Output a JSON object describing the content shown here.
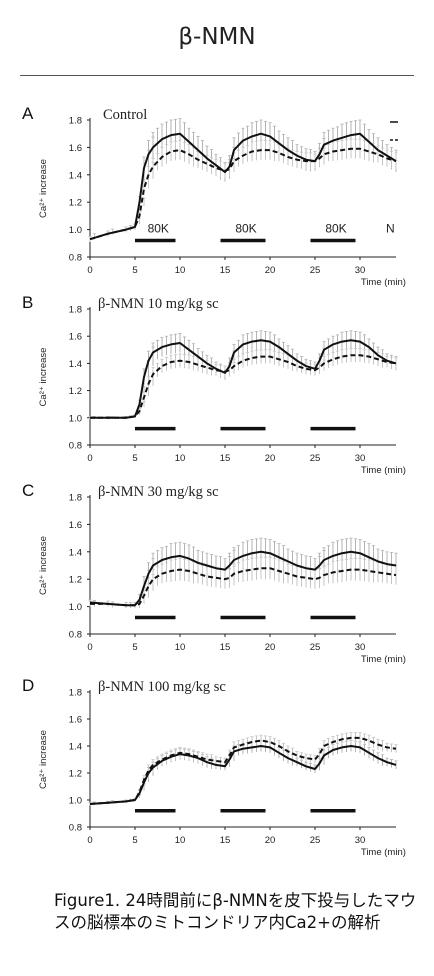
{
  "title": "β-NMN",
  "caption": "Figure1. 24時間前にβ-NMNを皮下投与したマウスの脳標本のミトコンドリア内Ca2+の解析",
  "chart_data": [
    {
      "type": "line",
      "panel": "A",
      "condition": "Control",
      "xlabel": "Time (min)",
      "ylabel": "Ca²⁺ increase",
      "xlim": [
        0,
        34
      ],
      "ylim": [
        0.8,
        1.8
      ],
      "x_ticks": [
        "0",
        "5",
        "10",
        "15",
        "20",
        "25",
        "30",
        "35"
      ],
      "y_ticks": [
        "0.8",
        "1.0",
        "1.2",
        "1.4",
        "1.6",
        "1.8"
      ],
      "stimuli": [
        {
          "start": 5,
          "end": 9.5,
          "label": "80K"
        },
        {
          "start": 14.5,
          "end": 19.5,
          "label": "80K"
        },
        {
          "start": 24.5,
          "end": 29.5,
          "label": "80K"
        }
      ],
      "extra_label": "N",
      "series": [
        {
          "style": "solid",
          "x": [
            0,
            2,
            4,
            5,
            5.5,
            6,
            6.5,
            7,
            8,
            9,
            10,
            11,
            12,
            13,
            14,
            15,
            15.5,
            16,
            17,
            18,
            19,
            20,
            21,
            22,
            23,
            24,
            25,
            25.5,
            26,
            27,
            28,
            29,
            30,
            31,
            32,
            33,
            34
          ],
          "y": [
            0.93,
            0.97,
            1.0,
            1.02,
            1.2,
            1.45,
            1.55,
            1.6,
            1.66,
            1.69,
            1.7,
            1.64,
            1.58,
            1.52,
            1.47,
            1.42,
            1.46,
            1.58,
            1.65,
            1.68,
            1.7,
            1.68,
            1.63,
            1.58,
            1.54,
            1.51,
            1.5,
            1.55,
            1.62,
            1.65,
            1.67,
            1.69,
            1.7,
            1.64,
            1.58,
            1.54,
            1.5
          ],
          "err": [
            0.02,
            0.02,
            0.02,
            0.02,
            0.04,
            0.08,
            0.1,
            0.11,
            0.11,
            0.11,
            0.11,
            0.1,
            0.1,
            0.09,
            0.08,
            0.07,
            0.08,
            0.09,
            0.09,
            0.1,
            0.1,
            0.1,
            0.09,
            0.09,
            0.08,
            0.08,
            0.07,
            0.08,
            0.09,
            0.09,
            0.1,
            0.1,
            0.1,
            0.09,
            0.09,
            0.08,
            0.08
          ]
        },
        {
          "style": "dashed",
          "x": [
            0,
            2,
            4,
            5,
            5.5,
            6,
            6.5,
            7,
            8,
            9,
            10,
            11,
            12,
            13,
            14,
            15,
            15.5,
            16,
            17,
            18,
            19,
            20,
            21,
            22,
            23,
            24,
            25,
            25.5,
            26,
            27,
            28,
            29,
            30,
            31,
            32,
            33,
            34
          ],
          "y": [
            0.93,
            0.97,
            1.0,
            1.02,
            1.1,
            1.3,
            1.4,
            1.46,
            1.53,
            1.57,
            1.58,
            1.55,
            1.51,
            1.48,
            1.45,
            1.43,
            1.44,
            1.5,
            1.54,
            1.57,
            1.58,
            1.58,
            1.56,
            1.53,
            1.51,
            1.5,
            1.5,
            1.52,
            1.55,
            1.57,
            1.58,
            1.59,
            1.59,
            1.57,
            1.55,
            1.52,
            1.5
          ],
          "err": [
            0.02,
            0.02,
            0.02,
            0.02,
            0.03,
            0.05,
            0.06,
            0.06,
            0.07,
            0.07,
            0.07,
            0.07,
            0.06,
            0.06,
            0.06,
            0.05,
            0.05,
            0.06,
            0.06,
            0.07,
            0.07,
            0.07,
            0.06,
            0.06,
            0.06,
            0.06,
            0.05,
            0.06,
            0.06,
            0.07,
            0.07,
            0.07,
            0.07,
            0.07,
            0.06,
            0.06,
            0.06
          ]
        }
      ]
    },
    {
      "type": "line",
      "panel": "B",
      "condition": "β-NMN 10 mg/kg sc",
      "xlabel": "Time (min)",
      "ylabel": "Ca²⁺ increase",
      "xlim": [
        0,
        34
      ],
      "ylim": [
        0.8,
        1.8
      ],
      "x_ticks": [
        "0",
        "5",
        "10",
        "15",
        "20",
        "25",
        "30",
        "35"
      ],
      "y_ticks": [
        "0.8",
        "1.0",
        "1.2",
        "1.4",
        "1.6",
        "1.8"
      ],
      "stimuli": [
        {
          "start": 5,
          "end": 9.5
        },
        {
          "start": 14.5,
          "end": 19.5
        },
        {
          "start": 24.5,
          "end": 29.5
        }
      ],
      "series": [
        {
          "style": "solid",
          "x": [
            0,
            2,
            4,
            5,
            5.5,
            6,
            6.5,
            7,
            8,
            9,
            10,
            11,
            12,
            13,
            14,
            15,
            15.5,
            16,
            17,
            18,
            19,
            20,
            21,
            22,
            23,
            24,
            25,
            25.5,
            26,
            27,
            28,
            29,
            30,
            31,
            32,
            33,
            34
          ],
          "y": [
            1.0,
            1.0,
            1.0,
            1.01,
            1.1,
            1.3,
            1.42,
            1.48,
            1.52,
            1.54,
            1.55,
            1.5,
            1.45,
            1.4,
            1.36,
            1.33,
            1.38,
            1.48,
            1.54,
            1.56,
            1.57,
            1.56,
            1.52,
            1.47,
            1.42,
            1.38,
            1.36,
            1.42,
            1.5,
            1.54,
            1.56,
            1.57,
            1.56,
            1.52,
            1.46,
            1.42,
            1.4
          ],
          "err": [
            0.01,
            0.01,
            0.01,
            0.01,
            0.03,
            0.06,
            0.07,
            0.07,
            0.07,
            0.07,
            0.07,
            0.07,
            0.06,
            0.06,
            0.05,
            0.05,
            0.06,
            0.06,
            0.07,
            0.07,
            0.07,
            0.07,
            0.06,
            0.06,
            0.05,
            0.05,
            0.05,
            0.05,
            0.06,
            0.06,
            0.07,
            0.07,
            0.07,
            0.06,
            0.06,
            0.05,
            0.05
          ]
        },
        {
          "style": "dashed",
          "x": [
            0,
            2,
            4,
            5,
            5.5,
            6,
            6.5,
            7,
            8,
            9,
            10,
            11,
            12,
            13,
            14,
            15,
            15.5,
            16,
            17,
            18,
            19,
            20,
            21,
            22,
            23,
            24,
            25,
            25.5,
            26,
            27,
            28,
            29,
            30,
            31,
            32,
            33,
            34
          ],
          "y": [
            1.0,
            1.0,
            1.0,
            1.01,
            1.05,
            1.15,
            1.25,
            1.32,
            1.38,
            1.41,
            1.42,
            1.41,
            1.39,
            1.37,
            1.35,
            1.34,
            1.35,
            1.38,
            1.42,
            1.44,
            1.45,
            1.45,
            1.43,
            1.41,
            1.38,
            1.36,
            1.35,
            1.37,
            1.4,
            1.43,
            1.45,
            1.46,
            1.46,
            1.45,
            1.43,
            1.41,
            1.4
          ],
          "err": [
            0.01,
            0.01,
            0.01,
            0.01,
            0.02,
            0.04,
            0.05,
            0.05,
            0.05,
            0.05,
            0.05,
            0.05,
            0.05,
            0.05,
            0.04,
            0.04,
            0.04,
            0.05,
            0.05,
            0.05,
            0.05,
            0.05,
            0.05,
            0.05,
            0.04,
            0.04,
            0.04,
            0.04,
            0.05,
            0.05,
            0.05,
            0.05,
            0.05,
            0.05,
            0.05,
            0.04,
            0.04
          ]
        }
      ]
    },
    {
      "type": "line",
      "panel": "C",
      "condition": "β-NMN 30 mg/kg sc",
      "xlabel": "Time (min)",
      "ylabel": "Ca²⁺ increase",
      "xlim": [
        0,
        34
      ],
      "ylim": [
        0.8,
        1.8
      ],
      "x_ticks": [
        "0",
        "5",
        "10",
        "15",
        "20",
        "25",
        "30"
      ],
      "y_ticks": [
        "0.8",
        "1.0",
        "1.2",
        "1.4",
        "1.6",
        "1.8"
      ],
      "stimuli": [
        {
          "start": 5,
          "end": 9.5
        },
        {
          "start": 14.5,
          "end": 19.5
        },
        {
          "start": 24.5,
          "end": 29.5
        }
      ],
      "series": [
        {
          "style": "solid",
          "x": [
            0,
            2,
            4,
            5,
            5.5,
            6,
            6.5,
            7,
            8,
            9,
            10,
            11,
            12,
            13,
            14,
            15,
            15.5,
            16,
            17,
            18,
            19,
            20,
            21,
            22,
            23,
            24,
            25,
            25.5,
            26,
            27,
            28,
            29,
            30,
            31,
            32,
            33,
            34
          ],
          "y": [
            1.03,
            1.02,
            1.01,
            1.01,
            1.05,
            1.15,
            1.24,
            1.3,
            1.34,
            1.36,
            1.37,
            1.35,
            1.32,
            1.3,
            1.28,
            1.27,
            1.3,
            1.34,
            1.37,
            1.39,
            1.4,
            1.39,
            1.36,
            1.33,
            1.3,
            1.28,
            1.27,
            1.3,
            1.34,
            1.37,
            1.39,
            1.4,
            1.39,
            1.36,
            1.33,
            1.31,
            1.3
          ],
          "err": [
            0.02,
            0.02,
            0.02,
            0.02,
            0.04,
            0.07,
            0.08,
            0.09,
            0.09,
            0.1,
            0.1,
            0.1,
            0.09,
            0.09,
            0.09,
            0.08,
            0.09,
            0.09,
            0.1,
            0.1,
            0.1,
            0.1,
            0.1,
            0.09,
            0.09,
            0.09,
            0.08,
            0.09,
            0.09,
            0.1,
            0.1,
            0.1,
            0.1,
            0.1,
            0.09,
            0.09,
            0.09
          ]
        },
        {
          "style": "dashed",
          "x": [
            0,
            2,
            4,
            5,
            5.5,
            6,
            6.5,
            7,
            8,
            9,
            10,
            11,
            12,
            13,
            14,
            15,
            15.5,
            16,
            17,
            18,
            19,
            20,
            21,
            22,
            23,
            24,
            25,
            25.5,
            26,
            27,
            28,
            29,
            30,
            31,
            32,
            33,
            34
          ],
          "y": [
            1.02,
            1.02,
            1.01,
            1.01,
            1.02,
            1.08,
            1.15,
            1.2,
            1.24,
            1.26,
            1.27,
            1.26,
            1.24,
            1.22,
            1.21,
            1.2,
            1.21,
            1.24,
            1.26,
            1.27,
            1.28,
            1.28,
            1.26,
            1.24,
            1.22,
            1.21,
            1.2,
            1.21,
            1.23,
            1.25,
            1.26,
            1.27,
            1.27,
            1.26,
            1.25,
            1.24,
            1.23
          ],
          "err": [
            0.02,
            0.02,
            0.02,
            0.02,
            0.03,
            0.05,
            0.06,
            0.07,
            0.07,
            0.08,
            0.08,
            0.08,
            0.07,
            0.07,
            0.07,
            0.07,
            0.07,
            0.07,
            0.08,
            0.08,
            0.08,
            0.08,
            0.08,
            0.07,
            0.07,
            0.07,
            0.07,
            0.07,
            0.07,
            0.08,
            0.08,
            0.08,
            0.08,
            0.08,
            0.07,
            0.07,
            0.07
          ]
        }
      ]
    },
    {
      "type": "line",
      "panel": "D",
      "condition": "β-NMN 100 mg/kg sc",
      "xlabel": "Time (min)",
      "ylabel": "Ca²⁺ increase",
      "xlim": [
        0,
        34
      ],
      "ylim": [
        0.8,
        1.8
      ],
      "x_ticks": [
        "0",
        "5",
        "10",
        "15",
        "20",
        "25",
        "30"
      ],
      "y_ticks": [
        "0.8",
        "1.0",
        "1.2",
        "1.4",
        "1.6",
        "1.8"
      ],
      "stimuli": [
        {
          "start": 5,
          "end": 9.5
        },
        {
          "start": 14.5,
          "end": 19.5
        },
        {
          "start": 24.5,
          "end": 29.5
        }
      ],
      "series": [
        {
          "style": "solid",
          "x": [
            0,
            2,
            4,
            5,
            5.5,
            6,
            6.5,
            7,
            8,
            9,
            10,
            11,
            12,
            13,
            14,
            15,
            15.5,
            16,
            17,
            18,
            19,
            20,
            21,
            22,
            23,
            24,
            25,
            25.5,
            26,
            27,
            28,
            29,
            30,
            31,
            32,
            33,
            34
          ],
          "y": [
            0.97,
            0.98,
            0.99,
            1.0,
            1.05,
            1.13,
            1.2,
            1.24,
            1.29,
            1.32,
            1.34,
            1.33,
            1.31,
            1.28,
            1.26,
            1.25,
            1.3,
            1.36,
            1.38,
            1.39,
            1.4,
            1.39,
            1.35,
            1.31,
            1.28,
            1.25,
            1.23,
            1.27,
            1.33,
            1.37,
            1.39,
            1.4,
            1.39,
            1.35,
            1.31,
            1.28,
            1.26
          ],
          "err": [
            0.01,
            0.01,
            0.01,
            0.01,
            0.02,
            0.03,
            0.04,
            0.04,
            0.04,
            0.04,
            0.04,
            0.04,
            0.04,
            0.04,
            0.03,
            0.03,
            0.04,
            0.04,
            0.04,
            0.04,
            0.04,
            0.04,
            0.04,
            0.04,
            0.03,
            0.03,
            0.03,
            0.04,
            0.04,
            0.04,
            0.04,
            0.04,
            0.04,
            0.04,
            0.04,
            0.03,
            0.03
          ]
        },
        {
          "style": "dashed",
          "x": [
            0,
            2,
            4,
            5,
            5.5,
            6,
            6.5,
            7,
            8,
            9,
            10,
            11,
            12,
            13,
            14,
            15,
            15.5,
            16,
            17,
            18,
            19,
            20,
            21,
            22,
            23,
            24,
            25,
            25.5,
            26,
            27,
            28,
            29,
            30,
            31,
            32,
            33,
            34
          ],
          "y": [
            0.97,
            0.98,
            0.99,
            1.0,
            1.06,
            1.15,
            1.22,
            1.26,
            1.3,
            1.33,
            1.35,
            1.34,
            1.32,
            1.3,
            1.29,
            1.28,
            1.33,
            1.39,
            1.41,
            1.43,
            1.44,
            1.43,
            1.4,
            1.36,
            1.33,
            1.31,
            1.3,
            1.34,
            1.4,
            1.43,
            1.45,
            1.46,
            1.46,
            1.44,
            1.41,
            1.39,
            1.38
          ],
          "err": [
            0.01,
            0.01,
            0.01,
            0.01,
            0.02,
            0.03,
            0.04,
            0.04,
            0.04,
            0.04,
            0.04,
            0.04,
            0.04,
            0.04,
            0.03,
            0.03,
            0.04,
            0.04,
            0.04,
            0.04,
            0.04,
            0.04,
            0.04,
            0.04,
            0.03,
            0.03,
            0.03,
            0.04,
            0.04,
            0.04,
            0.04,
            0.04,
            0.04,
            0.04,
            0.04,
            0.03,
            0.03
          ]
        }
      ]
    }
  ]
}
